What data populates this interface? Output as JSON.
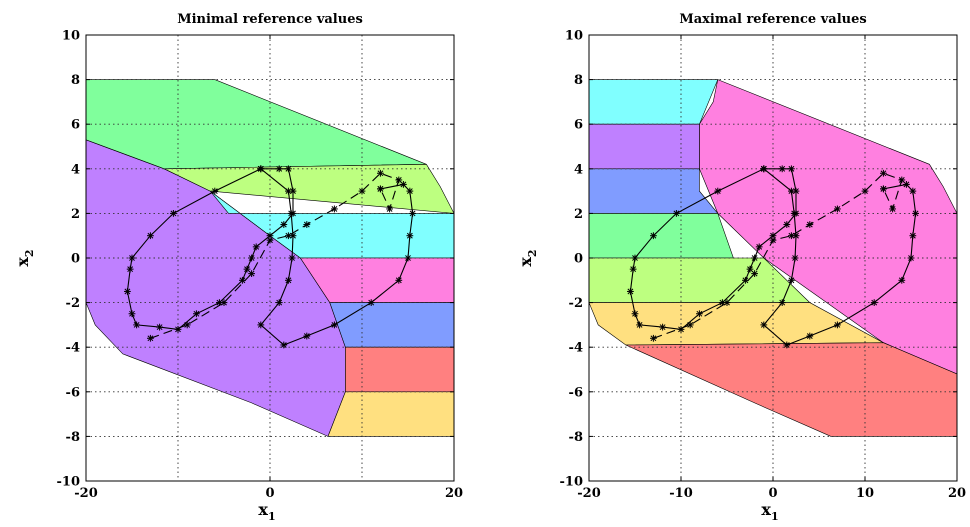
{
  "chart_data": [
    {
      "type": "region",
      "title": "Minimal reference values",
      "xlabel": "x",
      "xlabel_sub": "1",
      "ylabel": "x",
      "ylabel_sub": "2",
      "xlim": [
        -20,
        20
      ],
      "ylim": [
        -10,
        10
      ],
      "xticks": [
        -20,
        0,
        20
      ],
      "yticks": [
        -10,
        -8,
        -6,
        -4,
        -2,
        0,
        2,
        4,
        6,
        8,
        10
      ],
      "xgrid": [
        -10,
        0,
        10,
        20
      ],
      "ygrid": [
        -8,
        -6,
        -4,
        -2,
        0,
        2,
        4,
        6,
        8
      ],
      "grid": true,
      "regions": [
        {
          "color": "#bf80ff",
          "points": [
            [
              -20,
              5.3
            ],
            [
              -20,
              -2
            ],
            [
              -19,
              -3
            ],
            [
              -16,
              -4.3
            ],
            [
              -2,
              -6.5
            ],
            [
              6.3,
              -8
            ],
            [
              8.2,
              -6
            ],
            [
              8.2,
              -4
            ],
            [
              6.5,
              -2
            ],
            [
              3.3,
              0
            ],
            [
              0,
              1
            ],
            [
              -6.5,
              3
            ],
            [
              -11.5,
              4
            ],
            [
              -20,
              5.3
            ]
          ]
        },
        {
          "color": "#80ff9c",
          "points": [
            [
              -20,
              8
            ],
            [
              -6,
              8
            ],
            [
              17,
              4.2
            ],
            [
              -11.5,
              4
            ],
            [
              -20,
              5.3
            ]
          ]
        },
        {
          "color": "#bdff80",
          "points": [
            [
              -11.5,
              4
            ],
            [
              17,
              4.2
            ],
            [
              18.5,
              3.2
            ],
            [
              20,
              2
            ],
            [
              -6.5,
              3
            ]
          ]
        },
        {
          "color": "#80ffff",
          "points": [
            [
              -6.5,
              3
            ],
            [
              -4.5,
              2
            ],
            [
              20,
              2
            ],
            [
              20,
              0
            ],
            [
              3.3,
              0
            ],
            [
              0,
              1
            ]
          ]
        },
        {
          "color": "#ff80e0",
          "points": [
            [
              3.3,
              0
            ],
            [
              20,
              0
            ],
            [
              20,
              -2
            ],
            [
              6.5,
              -2
            ]
          ]
        },
        {
          "color": "#809cff",
          "points": [
            [
              6.5,
              -2
            ],
            [
              20,
              -2
            ],
            [
              20,
              -4
            ],
            [
              8.2,
              -4
            ]
          ]
        },
        {
          "color": "#ff8080",
          "points": [
            [
              8.2,
              -4
            ],
            [
              20,
              -4
            ],
            [
              20,
              -6
            ],
            [
              8.2,
              -6
            ]
          ]
        },
        {
          "color": "#ffe080",
          "points": [
            [
              8.2,
              -6
            ],
            [
              20,
              -6
            ],
            [
              20,
              -8
            ],
            [
              6.3,
              -8
            ]
          ]
        }
      ]
    },
    {
      "type": "region",
      "title": "Maximal reference values",
      "xlabel": "x",
      "xlabel_sub": "1",
      "ylabel": "x",
      "ylabel_sub": "2",
      "xlim": [
        -20,
        20
      ],
      "ylim": [
        -10,
        10
      ],
      "xticks": [
        -20,
        -10,
        0,
        10,
        20
      ],
      "yticks": [
        -10,
        -8,
        -6,
        -4,
        -2,
        0,
        2,
        4,
        6,
        8,
        10
      ],
      "xgrid": [
        -10,
        0,
        10,
        20
      ],
      "ygrid": [
        -8,
        -6,
        -4,
        -2,
        0,
        2,
        4,
        6,
        8
      ],
      "grid": true,
      "regions": [
        {
          "color": "#ff80e0",
          "points": [
            [
              -6,
              8
            ],
            [
              17,
              4.2
            ],
            [
              18.5,
              3.2
            ],
            [
              20,
              2
            ],
            [
              20,
              -5.2
            ],
            [
              12,
              -3.8
            ],
            [
              -1,
              0
            ],
            [
              -6,
              2
            ],
            [
              -8,
              4
            ],
            [
              -8,
              6
            ],
            [
              -6.5,
              7
            ]
          ]
        },
        {
          "color": "#80ffff",
          "points": [
            [
              -20,
              8
            ],
            [
              -6,
              8
            ],
            [
              -8,
              6
            ],
            [
              -20,
              6
            ]
          ]
        },
        {
          "color": "#bf80ff",
          "points": [
            [
              -20,
              6
            ],
            [
              -8,
              6
            ],
            [
              -8,
              4
            ],
            [
              -20,
              4
            ]
          ]
        },
        {
          "color": "#809cff",
          "points": [
            [
              -20,
              4
            ],
            [
              -8,
              4
            ],
            [
              -8,
              3
            ],
            [
              -6,
              2
            ],
            [
              -20,
              2
            ]
          ]
        },
        {
          "color": "#80ff9c",
          "points": [
            [
              -20,
              2
            ],
            [
              -6,
              2
            ],
            [
              -4.3,
              0
            ],
            [
              -20,
              0
            ]
          ]
        },
        {
          "color": "#bdff80",
          "points": [
            [
              -20,
              0
            ],
            [
              -1,
              0
            ],
            [
              4,
              -2
            ],
            [
              -20,
              -2
            ]
          ]
        },
        {
          "color": "#ffe080",
          "points": [
            [
              -20,
              -2
            ],
            [
              4,
              -2
            ],
            [
              12,
              -3.8
            ],
            [
              -16,
              -3.9
            ],
            [
              -19,
              -3
            ],
            [
              -20,
              -2
            ]
          ]
        },
        {
          "color": "#ff8080",
          "points": [
            [
              -16,
              -3.9
            ],
            [
              12,
              -3.8
            ],
            [
              20,
              -5.2
            ],
            [
              20,
              -8
            ],
            [
              6.3,
              -8
            ],
            [
              -2,
              -6.5
            ]
          ]
        }
      ]
    }
  ],
  "trajectories": {
    "solid": [
      [
        -1,
        4
      ],
      [
        -6,
        3
      ],
      [
        -10.5,
        2
      ],
      [
        -13,
        1
      ],
      [
        -15,
        0
      ],
      [
        -15.2,
        -0.5
      ],
      [
        -15.5,
        -1.5
      ],
      [
        -15,
        -2.5
      ],
      [
        -14.5,
        -3
      ],
      [
        -12,
        -3.1
      ],
      [
        -10,
        -3.2
      ],
      [
        -8,
        -2.5
      ],
      [
        -5.5,
        -2
      ],
      [
        -3,
        -1
      ],
      [
        -2.5,
        -0.5
      ],
      [
        -2,
        0
      ],
      [
        -1.5,
        0.5
      ],
      [
        0,
        1
      ],
      [
        1.5,
        1.5
      ],
      [
        2.5,
        2
      ],
      [
        2.5,
        3
      ],
      [
        2,
        4
      ],
      [
        1,
        4
      ],
      [
        -1,
        4
      ]
    ],
    "solid2": [
      [
        -1,
        4
      ],
      [
        2,
        3
      ],
      [
        2.3,
        2
      ],
      [
        2.5,
        1
      ],
      [
        2.4,
        0
      ],
      [
        2,
        -1
      ],
      [
        1,
        -2
      ],
      [
        -1,
        -3
      ],
      [
        1.5,
        -3.9
      ],
      [
        4,
        -3.5
      ],
      [
        7,
        -3
      ],
      [
        11,
        -2
      ],
      [
        14,
        -1
      ],
      [
        15,
        0
      ],
      [
        15.2,
        1
      ],
      [
        15.5,
        2
      ],
      [
        15.2,
        3
      ],
      [
        14.5,
        3.3
      ],
      [
        12,
        3.1
      ]
    ]
  },
  "dashed_path": [
    [
      -13,
      -3.6
    ],
    [
      -9,
      -3
    ],
    [
      -5,
      -2
    ],
    [
      -2,
      -0.7
    ],
    [
      0,
      0.8
    ],
    [
      2,
      1
    ],
    [
      4,
      1.5
    ],
    [
      7,
      2.2
    ],
    [
      10,
      3
    ],
    [
      12,
      3.8
    ],
    [
      14,
      3.5
    ],
    [
      13,
      2.2
    ],
    [
      12,
      3.1
    ]
  ]
}
